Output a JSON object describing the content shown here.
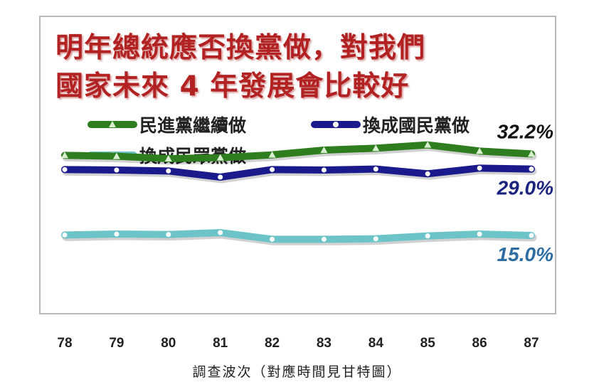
{
  "title_lines": [
    "明年總統應否換黨做，對我們",
    "國家未來 4 年發展會比較好"
  ],
  "chart_data": {
    "type": "line",
    "x": [
      "78",
      "79",
      "80",
      "81",
      "82",
      "83",
      "84",
      "85",
      "86",
      "87"
    ],
    "xlabel": "調查波次（對應時間見甘特圖）",
    "ylabel": "",
    "ylim": [
      0,
      45
    ],
    "grid": false,
    "legend_placement": "top",
    "series": [
      {
        "name": "民進黨繼續做",
        "color": "#2e7d1e",
        "marker": "triangle",
        "end_label": "32.2%",
        "end_label_color": "#111111",
        "values": [
          31.9,
          31.7,
          31.2,
          31.4,
          32.0,
          33.0,
          33.4,
          34.1,
          32.8,
          32.2
        ]
      },
      {
        "name": "換成國民黨做",
        "color": "#1a1a8c",
        "marker": "circle",
        "end_label": "29.0%",
        "end_label_color": "#1a237e",
        "values": [
          28.9,
          28.8,
          28.6,
          27.3,
          28.9,
          28.8,
          29.0,
          28.0,
          29.2,
          29.0
        ]
      },
      {
        "name": "換成民眾黨做",
        "color": "#6cc4c8",
        "marker": "circle",
        "end_label": "15.0%",
        "end_label_color": "#2e6da4",
        "values": [
          15.1,
          15.3,
          15.2,
          15.6,
          14.2,
          14.2,
          14.3,
          14.9,
          15.3,
          15.0
        ]
      }
    ]
  }
}
